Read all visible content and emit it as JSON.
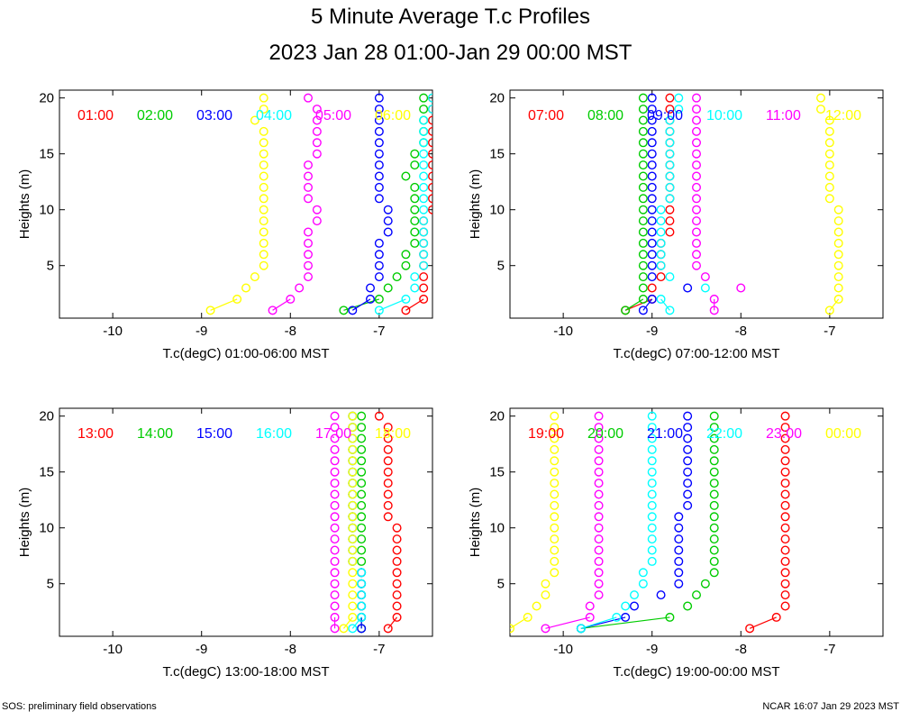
{
  "title": "5 Minute Average T.c Profiles",
  "subtitle": "2023 Jan 28 01:00-Jan 29 00:00 MST",
  "footer_left": "SOS: preliminary field observations",
  "footer_right": "NCAR 16:07 Jan 29 2023 MST",
  "ylabel": "Heights (m)",
  "heights": [
    1,
    2,
    3,
    4,
    5,
    6,
    7,
    8,
    9,
    10,
    11,
    12,
    13,
    14,
    15,
    16,
    17,
    18,
    19,
    20
  ],
  "colors": [
    "#ff0000",
    "#00cc00",
    "#0000ff",
    "#00ffff",
    "#ff00ff",
    "#ffff00"
  ],
  "chart_data": [
    {
      "type": "scatter",
      "xlabel": "T.c(degC) 01:00-06:00 MST",
      "xlim": [
        -10.6,
        -6.4
      ],
      "ylim": [
        0.3,
        20.7
      ],
      "xticks": [
        "-10",
        "-9",
        "-8",
        "-7"
      ],
      "yticks": [
        "5",
        "10",
        "15",
        "20"
      ],
      "series": [
        {
          "name": "01:00",
          "values": [
            -6.7,
            -6.5,
            -6.5,
            -6.5,
            -6.5,
            -6.5,
            -6.5,
            -6.5,
            -6.5,
            -6.4,
            -6.4,
            -6.4,
            -6.4,
            -6.4,
            -6.4,
            -6.4,
            -6.4,
            -6.4,
            -6.4,
            -6.4
          ]
        },
        {
          "name": "02:00",
          "values": [
            -7.4,
            -7.0,
            -6.9,
            -6.8,
            -6.7,
            -6.7,
            -6.6,
            -6.6,
            -6.6,
            -6.6,
            -6.6,
            -6.6,
            -6.7,
            -6.6,
            -6.6,
            -6.5,
            -6.5,
            -6.5,
            -6.5,
            -6.5
          ]
        },
        {
          "name": "03:00",
          "values": [
            -7.3,
            -7.1,
            -7.1,
            -7.0,
            -7.0,
            -7.0,
            -7.0,
            -6.9,
            -6.9,
            -6.9,
            -7.0,
            -7.0,
            -7.0,
            -7.0,
            -7.0,
            -7.0,
            -7.0,
            -7.0,
            -7.0,
            -7.0
          ]
        },
        {
          "name": "04:00",
          "values": [
            -7.0,
            -6.7,
            -6.6,
            -6.6,
            -6.5,
            -6.5,
            -6.5,
            -6.5,
            -6.5,
            -6.5,
            -6.5,
            -6.5,
            -6.5,
            -6.5,
            -6.5,
            -6.5,
            -6.5,
            -6.5,
            -6.4,
            -6.4
          ]
        },
        {
          "name": "05:00",
          "values": [
            -8.2,
            -8.0,
            -7.9,
            -7.8,
            -7.8,
            -7.8,
            -7.8,
            -7.8,
            -7.7,
            -7.7,
            -7.8,
            -7.8,
            -7.8,
            -7.8,
            -7.7,
            -7.7,
            -7.7,
            -7.7,
            -7.7,
            -7.8
          ]
        },
        {
          "name": "06:00",
          "values": [
            -8.9,
            -8.6,
            -8.5,
            -8.4,
            -8.3,
            -8.3,
            -8.3,
            -8.3,
            -8.3,
            -8.3,
            -8.3,
            -8.3,
            -8.3,
            -8.3,
            -8.3,
            -8.3,
            -8.3,
            -8.4,
            -8.3,
            -8.3
          ]
        }
      ]
    },
    {
      "type": "scatter",
      "xlabel": "T.c(degC) 07:00-12:00 MST",
      "xlim": [
        -10.6,
        -6.4
      ],
      "ylim": [
        0.3,
        20.7
      ],
      "xticks": [
        "-10",
        "-9",
        "-8",
        "-7"
      ],
      "yticks": [
        "5",
        "10",
        "15",
        "20"
      ],
      "series": [
        {
          "name": "07:00",
          "values": [
            -9.3,
            -9.0,
            -9.0,
            -8.9,
            -8.9,
            -8.9,
            -8.9,
            -8.8,
            -8.8,
            -8.8,
            -8.8,
            -8.8,
            -8.8,
            -8.8,
            -8.8,
            -8.8,
            -8.8,
            -8.8,
            -8.8,
            -8.8
          ]
        },
        {
          "name": "08:00",
          "values": [
            -9.3,
            -9.1,
            -9.1,
            -9.1,
            -9.1,
            -9.1,
            -9.1,
            -9.1,
            -9.1,
            -9.1,
            -9.1,
            -9.1,
            -9.1,
            -9.1,
            -9.1,
            -9.1,
            -9.1,
            -9.1,
            -9.1,
            -9.1
          ]
        },
        {
          "name": "09:00",
          "values": [
            -9.1,
            -9.0,
            -8.6,
            -9.0,
            -9.0,
            -9.0,
            -9.0,
            -9.0,
            -9.0,
            -9.0,
            -9.0,
            -9.0,
            -9.0,
            -9.0,
            -9.0,
            -9.0,
            -9.0,
            -9.0,
            -9.0,
            -9.0
          ]
        },
        {
          "name": "10:00",
          "values": [
            -8.8,
            -8.9,
            -8.4,
            -8.8,
            -8.9,
            -8.9,
            -8.9,
            -8.9,
            -8.9,
            -8.9,
            -8.8,
            -8.8,
            -8.8,
            -8.8,
            -8.8,
            -8.8,
            -8.8,
            -8.8,
            -8.7,
            -8.7
          ]
        },
        {
          "name": "11:00",
          "values": [
            -8.3,
            -8.3,
            -8.0,
            -8.4,
            -8.5,
            -8.5,
            -8.5,
            -8.5,
            -8.5,
            -8.5,
            -8.5,
            -8.5,
            -8.5,
            -8.5,
            -8.5,
            -8.5,
            -8.5,
            -8.5,
            -8.5,
            -8.5
          ]
        },
        {
          "name": "12:00",
          "values": [
            -7.0,
            -6.9,
            -6.9,
            -6.9,
            -6.9,
            -6.9,
            -6.9,
            -6.9,
            -6.9,
            -6.9,
            -7.0,
            -7.0,
            -7.0,
            -7.0,
            -7.0,
            -7.0,
            -7.0,
            -7.0,
            -7.1,
            -7.1
          ]
        }
      ]
    },
    {
      "type": "scatter",
      "xlabel": "T.c(degC) 13:00-18:00 MST",
      "xlim": [
        -10.6,
        -6.4
      ],
      "ylim": [
        0.3,
        20.7
      ],
      "xticks": [
        "-10",
        "-9",
        "-8",
        "-7"
      ],
      "yticks": [
        "5",
        "10",
        "15",
        "20"
      ],
      "series": [
        {
          "name": "13:00",
          "values": [
            -6.9,
            -6.8,
            -6.8,
            -6.8,
            -6.8,
            -6.8,
            -6.8,
            -6.8,
            -6.8,
            -6.8,
            -6.9,
            -6.9,
            -6.9,
            -6.9,
            -6.9,
            -6.9,
            -6.9,
            -6.9,
            -6.9,
            -7.0
          ]
        },
        {
          "name": "14:00",
          "values": [
            -7.2,
            -7.2,
            -7.2,
            -7.2,
            -7.2,
            -7.2,
            -7.2,
            -7.2,
            -7.2,
            -7.2,
            -7.2,
            -7.2,
            -7.2,
            -7.2,
            -7.2,
            -7.2,
            -7.2,
            -7.2,
            -7.2,
            -7.2
          ]
        },
        {
          "name": "15:00",
          "values": [
            -7.2,
            -7.2,
            -7.2,
            -7.2,
            -7.2,
            -7.2,
            -7.3,
            -7.3,
            -7.3,
            -7.3,
            -7.3,
            -7.3,
            -7.3,
            -7.3,
            -7.3,
            -7.3,
            -7.3,
            -7.3,
            -7.3,
            -7.3
          ]
        },
        {
          "name": "16:00",
          "values": [
            -7.3,
            -7.2,
            -7.2,
            -7.2,
            -7.2,
            -7.2,
            -7.3,
            -7.3,
            -7.3,
            -7.3,
            -7.3,
            -7.3,
            -7.3,
            -7.3,
            -7.3,
            -7.3,
            -7.3,
            -7.3,
            -7.3,
            -7.3
          ]
        },
        {
          "name": "17:00",
          "values": [
            -7.5,
            -7.5,
            -7.5,
            -7.5,
            -7.5,
            -7.5,
            -7.5,
            -7.5,
            -7.5,
            -7.5,
            -7.5,
            -7.5,
            -7.5,
            -7.5,
            -7.5,
            -7.5,
            -7.5,
            -7.5,
            -7.5,
            -7.5
          ]
        },
        {
          "name": "18:00",
          "values": [
            -7.4,
            -7.3,
            -7.3,
            -7.3,
            -7.3,
            -7.3,
            -7.3,
            -7.3,
            -7.3,
            -7.3,
            -7.3,
            -7.3,
            -7.3,
            -7.3,
            -7.3,
            -7.3,
            -7.3,
            -7.3,
            -7.3,
            -7.3
          ]
        }
      ]
    },
    {
      "type": "scatter",
      "xlabel": "T.c(degC) 19:00-00:00 MST",
      "xlim": [
        -10.6,
        -6.4
      ],
      "ylim": [
        0.3,
        20.7
      ],
      "xticks": [
        "-10",
        "-9",
        "-8",
        "-7"
      ],
      "yticks": [
        "5",
        "10",
        "15",
        "20"
      ],
      "series": [
        {
          "name": "19:00",
          "values": [
            -7.9,
            -7.6,
            -7.5,
            -7.5,
            -7.5,
            -7.5,
            -7.5,
            -7.5,
            -7.5,
            -7.5,
            -7.5,
            -7.5,
            -7.5,
            -7.5,
            -7.5,
            -7.5,
            -7.5,
            -7.5,
            -7.5,
            -7.5
          ]
        },
        {
          "name": "20:00",
          "values": [
            -9.8,
            -8.8,
            -8.6,
            -8.5,
            -8.4,
            -8.3,
            -8.3,
            -8.3,
            -8.3,
            -8.3,
            -8.3,
            -8.3,
            -8.3,
            -8.3,
            -8.3,
            -8.3,
            -8.3,
            -8.3,
            -8.3,
            -8.3
          ]
        },
        {
          "name": "21:00",
          "values": [
            -9.8,
            -9.3,
            -9.2,
            -8.9,
            -8.7,
            -8.7,
            -8.7,
            -8.7,
            -8.7,
            -8.7,
            -8.7,
            -8.6,
            -8.6,
            -8.6,
            -8.6,
            -8.6,
            -8.6,
            -8.6,
            -8.6,
            -8.6
          ]
        },
        {
          "name": "22:00",
          "values": [
            -9.8,
            -9.4,
            -9.3,
            -9.2,
            -9.1,
            -9.1,
            -9.0,
            -9.0,
            -9.0,
            -9.0,
            -9.0,
            -9.0,
            -9.0,
            -9.0,
            -9.0,
            -9.0,
            -9.0,
            -9.0,
            -9.0,
            -9.0
          ]
        },
        {
          "name": "23:00",
          "values": [
            -10.2,
            -9.7,
            -9.7,
            -9.6,
            -9.6,
            -9.6,
            -9.6,
            -9.6,
            -9.6,
            -9.6,
            -9.6,
            -9.6,
            -9.6,
            -9.6,
            -9.6,
            -9.6,
            -9.6,
            -9.6,
            -9.6,
            -9.6
          ]
        },
        {
          "name": "00:00",
          "values": [
            -10.6,
            -10.4,
            -10.3,
            -10.2,
            -10.2,
            -10.1,
            -10.1,
            -10.1,
            -10.1,
            -10.1,
            -10.1,
            -10.1,
            -10.1,
            -10.1,
            -10.1,
            -10.1,
            -10.1,
            -10.1,
            -10.1,
            -10.1
          ]
        }
      ]
    }
  ]
}
